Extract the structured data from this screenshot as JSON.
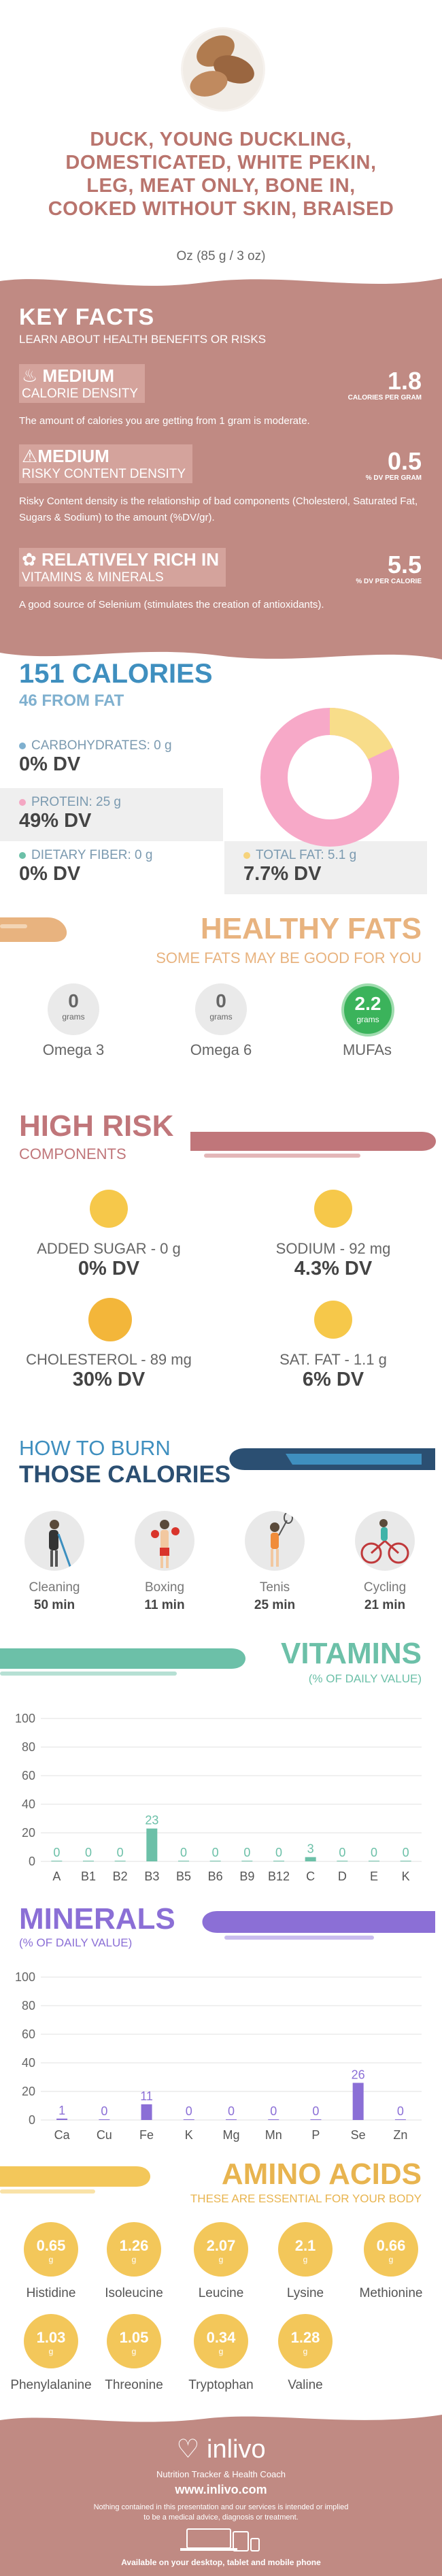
{
  "header": {
    "title_lines": [
      "DUCK, YOUNG DUCKLING,",
      "DOMESTICATED, WHITE PEKIN,",
      "LEG, MEAT ONLY, BONE IN,",
      "COOKED WITHOUT SKIN, BRAISED"
    ],
    "serving": "Oz (85 g / 3 oz)"
  },
  "key_facts": {
    "title": "KEY FACTS",
    "subtitle": "LEARN ABOUT HEALTH BENEFITS OR RISKS",
    "facts": [
      {
        "level": "MEDIUM",
        "label": "CALORIE DENSITY",
        "value": "1.8",
        "unit": "CALORIES PER GRAM",
        "desc": "The amount of calories you are getting from 1 gram is moderate.",
        "icon": "flame-icon"
      },
      {
        "level": "MEDIUM",
        "label": "RISKY CONTENT DENSITY",
        "value": "0.5",
        "unit": "% DV PER GRAM",
        "desc": "Risky Content density is the relationship of bad components (Cholesterol, Saturated Fat, Sugars & Sodium) to the amount (%DV/gr).",
        "icon": "warning-icon"
      },
      {
        "level": "RELATIVELY RICH IN",
        "label": "VITAMINS & MINERALS",
        "value": "5.5",
        "unit": "% DV PER CALORIE",
        "desc": "A good source of Selenium (stimulates the creation of antioxidants).",
        "icon": "leaf-icon"
      }
    ]
  },
  "calories": {
    "title": "151 CALORIES",
    "from_fat": "46 FROM FAT",
    "macros": [
      {
        "label": "CARBOHYDRATES: 0 g",
        "dv": "0% DV",
        "color": "#7fb0cf"
      },
      {
        "label": "PROTEIN: 25 g",
        "dv": "49% DV",
        "color": "#f4a7c3"
      },
      {
        "label": "DIETARY FIBER: 0 g",
        "dv": "0% DV",
        "color": "#6cc0a8"
      },
      {
        "label": "TOTAL FAT: 5.1 g",
        "dv": "7.7% DV",
        "color": "#f6d37c"
      }
    ],
    "donut": {
      "protein_share": 0.82,
      "fat_share": 0.18,
      "protein_color": "#f7a9c8",
      "fat_color": "#f8dd8a"
    }
  },
  "healthy_fats": {
    "title": "HEALTHY FATS",
    "subtitle": "SOME FATS MAY BE GOOD FOR YOU",
    "items": [
      {
        "value": "0",
        "unit": "grams",
        "label": "Omega 3"
      },
      {
        "value": "0",
        "unit": "grams",
        "label": "Omega 6"
      },
      {
        "value": "2.2",
        "unit": "grams",
        "label": "MUFAs"
      }
    ]
  },
  "high_risk": {
    "title": "HIGH RISK",
    "subtitle": "COMPONENTS",
    "items": [
      {
        "label": "ADDED SUGAR - 0 g",
        "dv": "0% DV"
      },
      {
        "label": "SODIUM - 92 mg",
        "dv": "4.3% DV"
      },
      {
        "label": "CHOLESTEROL - 89 mg",
        "dv": "30% DV"
      },
      {
        "label": "SAT. FAT - 1.1 g",
        "dv": "6% DV"
      }
    ]
  },
  "burn": {
    "line1": "HOW TO BURN",
    "line2": "THOSE CALORIES",
    "activities": [
      {
        "label": "Cleaning",
        "minutes": "50 min"
      },
      {
        "label": "Boxing",
        "minutes": "11 min"
      },
      {
        "label": "Tenis",
        "minutes": "25 min"
      },
      {
        "label": "Cycling",
        "minutes": "21 min"
      }
    ]
  },
  "vitamins": {
    "title": "VITAMINS",
    "subtitle": "(% OF DAILY VALUE)",
    "color": "#6cc0a8"
  },
  "minerals": {
    "title": "MINERALS",
    "subtitle": "(% OF DAILY VALUE)",
    "color": "#8b6fd6"
  },
  "chart_data": [
    {
      "type": "bar",
      "title": "VITAMINS",
      "categories": [
        "A",
        "B1",
        "B2",
        "B3",
        "B5",
        "B6",
        "B9",
        "B12",
        "C",
        "D",
        "E",
        "K"
      ],
      "values": [
        0,
        0,
        0,
        23,
        0,
        0,
        0,
        0,
        3,
        0,
        0,
        0
      ],
      "ylim": [
        0,
        100
      ],
      "yticks": [
        0,
        20,
        40,
        60,
        80,
        100
      ]
    },
    {
      "type": "bar",
      "title": "MINERALS",
      "categories": [
        "Ca",
        "Cu",
        "Fe",
        "K",
        "Mg",
        "Mn",
        "P",
        "Se",
        "Zn"
      ],
      "values": [
        1,
        0,
        11,
        0,
        0,
        0,
        0,
        26,
        0
      ],
      "ylim": [
        0,
        100
      ],
      "yticks": [
        0,
        20,
        40,
        60,
        80,
        100
      ]
    }
  ],
  "amino_acids": {
    "title": "AMINO ACIDS",
    "subtitle": "THESE ARE ESSENTIAL FOR YOUR BODY",
    "unit": "g",
    "items": [
      {
        "value": "0.65",
        "label": "Histidine"
      },
      {
        "value": "1.26",
        "label": "Isoleucine"
      },
      {
        "value": "2.07",
        "label": "Leucine"
      },
      {
        "value": "2.1",
        "label": "Lysine"
      },
      {
        "value": "0.66",
        "label": "Methionine"
      },
      {
        "value": "1.03",
        "label": "Phenylalanine"
      },
      {
        "value": "1.05",
        "label": "Threonine"
      },
      {
        "value": "0.34",
        "label": "Tryptophan"
      },
      {
        "value": "1.28",
        "label": "Valine"
      }
    ]
  },
  "footer": {
    "brand": "inlivo",
    "tagline": "Nutrition Tracker & Health Coach",
    "url": "www.inlivo.com",
    "disclaimer_1": "Nothing contained in this presentation and our services is intended or implied",
    "disclaimer_2": "to be a medical advice, diagnosis or treatment.",
    "devices": "Available on your desktop, tablet and mobile phone"
  }
}
